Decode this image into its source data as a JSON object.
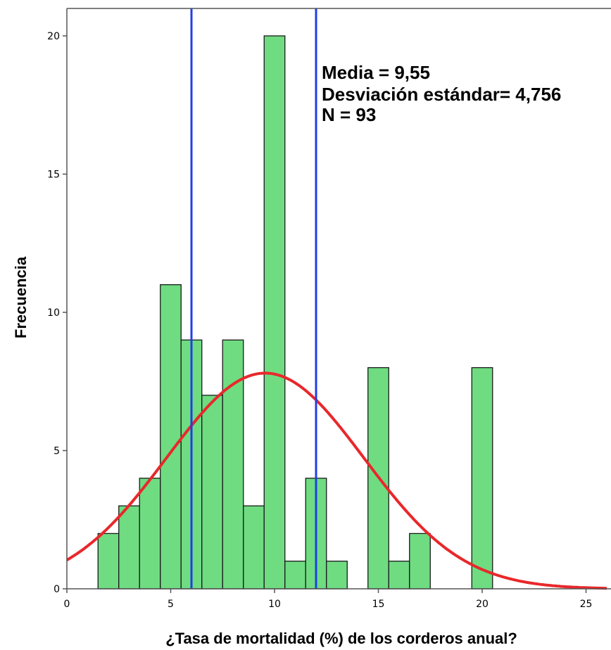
{
  "chart_data": {
    "type": "bar",
    "subtype": "histogram",
    "xlabel": "¿Tasa de mortalidad (%) de los corderos anual?",
    "ylabel": "Frecuencia",
    "xlim": [
      0,
      26
    ],
    "ylim": [
      0,
      21
    ],
    "x_ticks": [
      "0",
      "5",
      "10",
      "15",
      "20",
      "25"
    ],
    "y_ticks": [
      "0",
      "5",
      "10",
      "15",
      "20"
    ],
    "grid": false,
    "bin_width": 1,
    "bins": [
      {
        "start": 1.5,
        "end": 2.5,
        "value": 2
      },
      {
        "start": 2.5,
        "end": 3.5,
        "value": 3
      },
      {
        "start": 3.5,
        "end": 4.5,
        "value": 4
      },
      {
        "start": 4.5,
        "end": 5.5,
        "value": 11
      },
      {
        "start": 5.5,
        "end": 6.5,
        "value": 9
      },
      {
        "start": 6.5,
        "end": 7.5,
        "value": 7
      },
      {
        "start": 7.5,
        "end": 8.5,
        "value": 9
      },
      {
        "start": 8.5,
        "end": 9.5,
        "value": 3
      },
      {
        "start": 9.5,
        "end": 10.5,
        "value": 20
      },
      {
        "start": 10.5,
        "end": 11.5,
        "value": 1
      },
      {
        "start": 11.5,
        "end": 12.5,
        "value": 4
      },
      {
        "start": 12.5,
        "end": 13.5,
        "value": 1
      },
      {
        "start": 14.5,
        "end": 15.5,
        "value": 8
      },
      {
        "start": 15.5,
        "end": 16.5,
        "value": 1
      },
      {
        "start": 16.5,
        "end": 17.5,
        "value": 2
      },
      {
        "start": 19.5,
        "end": 20.5,
        "value": 8
      }
    ],
    "normal_curve": {
      "mean": 9.55,
      "sd": 4.756,
      "n": 93
    },
    "reference_lines_x": [
      6,
      12
    ],
    "stats_text": [
      "Media = 9,55",
      "Desviación estándar= 4,756",
      "N = 93"
    ],
    "colors": {
      "bar_fill": "#6fdc82",
      "bar_stroke": "#1a1a1a",
      "curve": "#e8282b",
      "reference_line": "#1f3fe6"
    }
  }
}
